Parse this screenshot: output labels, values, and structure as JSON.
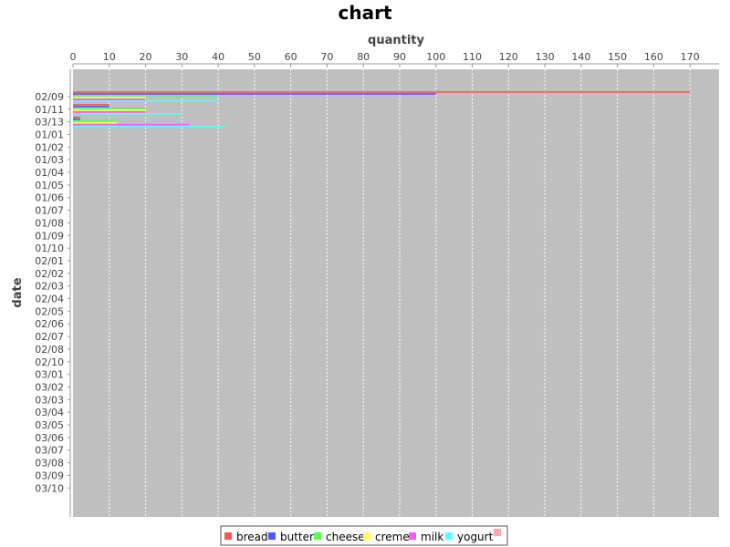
{
  "chart_data": {
    "type": "bar",
    "orientation": "horizontal",
    "title": "chart",
    "xlabel": "quantity",
    "ylabel": "date",
    "xlim": [
      0,
      178
    ],
    "x_ticks": [
      0,
      10,
      20,
      30,
      40,
      50,
      60,
      70,
      80,
      90,
      100,
      110,
      120,
      130,
      140,
      150,
      160,
      170
    ],
    "grid": true,
    "legend_position": "bottom",
    "categories": [
      "02/09",
      "01/11",
      "03/13",
      "01/01",
      "01/02",
      "01/03",
      "01/04",
      "01/05",
      "01/06",
      "01/07",
      "01/08",
      "01/09",
      "01/10",
      "02/01",
      "02/02",
      "02/03",
      "02/04",
      "02/05",
      "02/06",
      "02/07",
      "02/08",
      "02/10",
      "03/01",
      "03/02",
      "03/03",
      "03/04",
      "03/05",
      "03/06",
      "03/07",
      "03/08",
      "03/09",
      "03/10"
    ],
    "series": [
      {
        "name": "bread",
        "color": "#ff5555",
        "values": [
          170,
          10,
          2,
          0,
          0,
          0,
          0,
          0,
          0,
          0,
          0,
          0,
          0,
          0,
          0,
          0,
          0,
          0,
          0,
          0,
          0,
          0,
          0,
          0,
          0,
          0,
          0,
          0,
          0,
          0,
          0,
          0
        ]
      },
      {
        "name": "butter",
        "color": "#5555ff",
        "values": [
          100,
          10,
          2,
          0,
          0,
          0,
          0,
          0,
          0,
          0,
          0,
          0,
          0,
          0,
          0,
          0,
          0,
          0,
          0,
          0,
          0,
          0,
          0,
          0,
          0,
          0,
          0,
          0,
          0,
          0,
          0,
          0
        ]
      },
      {
        "name": "cheese",
        "color": "#55ff55",
        "values": [
          40,
          20,
          12,
          0,
          0,
          0,
          0,
          0,
          0,
          0,
          0,
          0,
          0,
          0,
          0,
          0,
          0,
          0,
          0,
          0,
          0,
          0,
          0,
          0,
          0,
          0,
          0,
          0,
          0,
          0,
          0,
          0
        ]
      },
      {
        "name": "creme",
        "color": "#ffff55",
        "values": [
          20,
          20,
          12,
          0,
          0,
          0,
          0,
          0,
          0,
          0,
          0,
          0,
          0,
          0,
          0,
          0,
          0,
          0,
          0,
          0,
          0,
          0,
          0,
          0,
          0,
          0,
          0,
          0,
          0,
          0,
          0,
          0
        ]
      },
      {
        "name": "milk",
        "color": "#ff55ff",
        "values": [
          20,
          20,
          32,
          0,
          0,
          0,
          0,
          0,
          0,
          0,
          0,
          0,
          0,
          0,
          0,
          0,
          0,
          0,
          0,
          0,
          0,
          0,
          0,
          0,
          0,
          0,
          0,
          0,
          0,
          0,
          0,
          0
        ]
      },
      {
        "name": "yogurt",
        "color": "#55ffff",
        "values": [
          40,
          30,
          42,
          0,
          0,
          0,
          0,
          0,
          0,
          0,
          0,
          0,
          0,
          0,
          0,
          0,
          0,
          0,
          0,
          0,
          0,
          0,
          0,
          0,
          0,
          0,
          0,
          0,
          0,
          0,
          0,
          0
        ]
      },
      {
        "name": "",
        "color": "#ffaaaa",
        "values": [
          0,
          0,
          0,
          0,
          0,
          0,
          0,
          0,
          0,
          0,
          0,
          0,
          0,
          0,
          0,
          0,
          0,
          0,
          0,
          0,
          0,
          0,
          0,
          0,
          0,
          0,
          0,
          0,
          0,
          0,
          0,
          0
        ]
      }
    ]
  }
}
